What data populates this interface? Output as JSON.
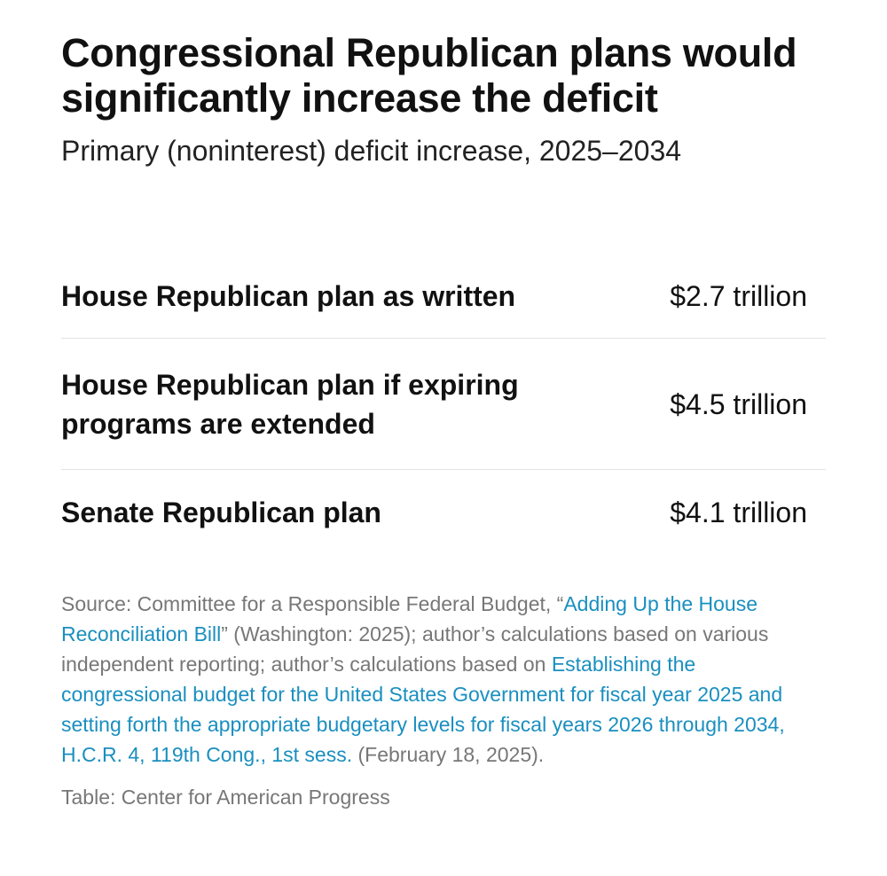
{
  "chart_data": {
    "type": "table",
    "title": "Congressional Republican plans would significantly increase the deficit",
    "subtitle": "Primary (noninterest) deficit increase, 2025–2034",
    "rows": [
      {
        "label": "House Republican plan as written",
        "value_text": "$2.7 trillion",
        "value": 2.7
      },
      {
        "label": "House Republican plan if expiring programs are extended",
        "value_text": "$4.5 trillion",
        "value": 4.5
      },
      {
        "label": "Senate Republican plan",
        "value_text": "$4.1 trillion",
        "value": 4.1
      }
    ],
    "unit": "trillion dollars"
  },
  "source": {
    "prefix": "Source: Committee for a Responsible Federal Budget, “",
    "link1": "Adding Up the House Reconciliation Bill",
    "mid": "” (Washington: 2025); author’s calculations based on various independent reporting; author’s calculations based on ",
    "link2": "Establishing the congressional budget for the United States Government for fiscal year 2025 and setting forth the appropriate budgetary levels for fiscal years 2026 through 2034, H.C.R. 4, 119th Cong., 1st sess.",
    "suffix": " (February 18, 2025)."
  },
  "credit": "Table: Center for American Progress",
  "colors": {
    "text": "#111111",
    "muted": "#777777",
    "link": "#1a8fbf",
    "divider": "#e3e3e3"
  }
}
